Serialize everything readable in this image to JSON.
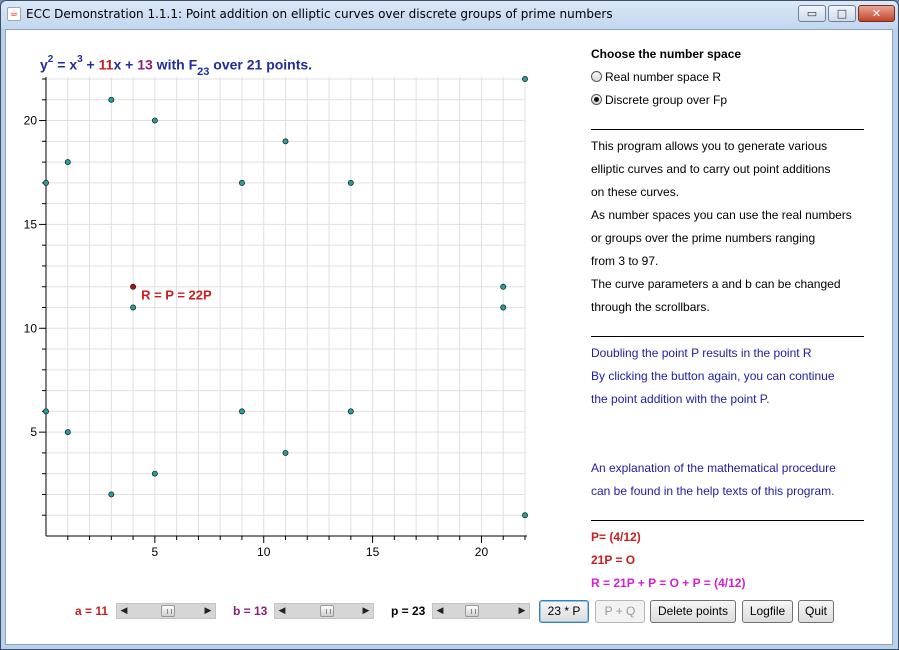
{
  "window": {
    "title": "ECC Demonstration 1.1.1: Point addition on elliptic curves over discrete groups of prime numbers",
    "controls": {
      "minimize": "▭",
      "maximize": "□",
      "close": "✕"
    }
  },
  "equation": {
    "y": "y",
    "y_exp": "2",
    "eq": " = x",
    "x_exp": "3",
    "plus1": " + ",
    "a": "11",
    "x_term": "x",
    "plus2": " + ",
    "b": "13",
    "with": " with F",
    "field_sub": "23",
    "over": " over 21 points."
  },
  "chart_data": {
    "type": "scatter",
    "title": "",
    "xlabel": "",
    "ylabel": "",
    "xlim": [
      0,
      22
    ],
    "ylim": [
      0,
      22
    ],
    "xticks": [
      "5",
      "10",
      "15",
      "20"
    ],
    "yticks": [
      "5",
      "10",
      "15",
      "20"
    ],
    "grid": true,
    "series": [
      {
        "points": [
          [
            0,
            6
          ],
          [
            0,
            17
          ],
          [
            1,
            5
          ],
          [
            1,
            18
          ],
          [
            3,
            2
          ],
          [
            3,
            21
          ],
          [
            4,
            11
          ],
          [
            5,
            3
          ],
          [
            5,
            20
          ],
          [
            9,
            6
          ],
          [
            9,
            17
          ],
          [
            11,
            4
          ],
          [
            11,
            19
          ],
          [
            14,
            6
          ],
          [
            14,
            17
          ],
          [
            21,
            11
          ],
          [
            21,
            12
          ],
          [
            22,
            1
          ],
          [
            22,
            22
          ]
        ],
        "color": "#20a0a0"
      },
      {
        "points": [
          [
            4,
            12
          ]
        ],
        "color": "#aa1010",
        "label": "R = P = 22P"
      }
    ]
  },
  "number_space": {
    "heading": "Choose the number space",
    "options": [
      {
        "label": "Real number space R",
        "checked": false
      },
      {
        "label": "Discrete group over Fp",
        "checked": true
      }
    ]
  },
  "intro": [
    "This program allows you to generate various",
    "elliptic curves and to carry out point additions",
    "on these curves.",
    "As number spaces you can use the real numbers",
    "or groups over the prime numbers ranging",
    "from 3 to 97.",
    "The curve parameters a and b can be changed",
    "through the scrollbars."
  ],
  "info": [
    "Doubling the point P results in the point R",
    "By clicking the button again, you can continue",
    "the point addition with the point P.",
    "",
    "",
    "An explanation of the mathematical procedure",
    "can be found in the help texts of this program."
  ],
  "results": {
    "p": "P= (4/12)",
    "zero": "21P = O",
    "r": "R = 21P + P = O + P = (4/12)"
  },
  "controls": {
    "a_label": "a = 11",
    "a_value": 11,
    "b_label": "b = 13",
    "b_value": 13,
    "p_label": "p = 23",
    "p_value": 23,
    "btn_mult": "23 * P",
    "btn_add": "P + Q",
    "btn_delete": "Delete points",
    "btn_log": "Logfile",
    "btn_quit": "Quit"
  },
  "colors": {
    "point": "#20a0a0",
    "highlight": "#aa1010",
    "blue_text": "#1c1ca8",
    "red_text": "#c81e1e",
    "magenta_text": "#d020d0"
  }
}
